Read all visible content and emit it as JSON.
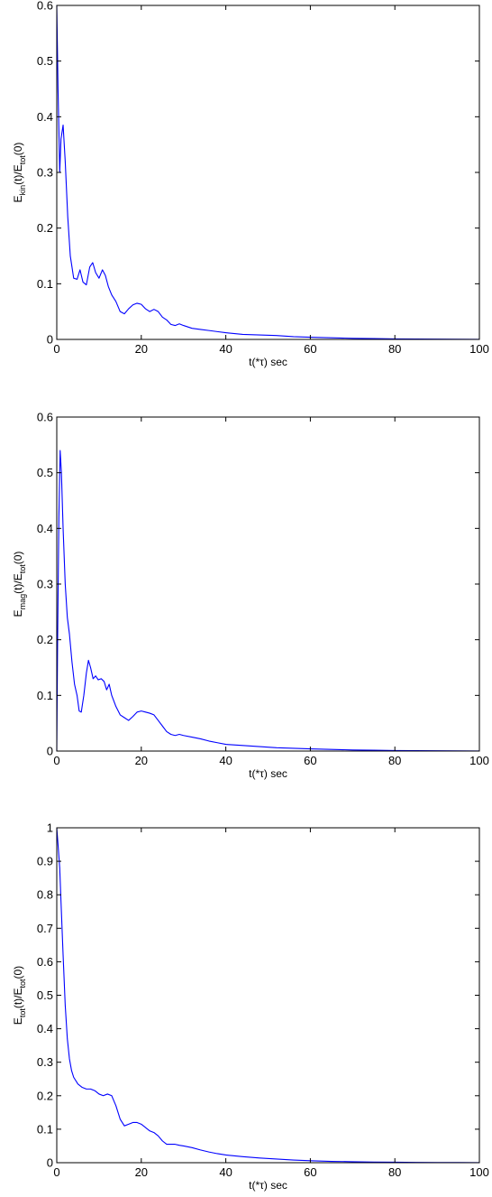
{
  "charts": [
    {
      "ylabel": {
        "main": "E",
        "sub1": "kin",
        "mid": "(t)/E",
        "sub2": "tot",
        "tail": "(0)"
      },
      "xlabel": "t(*τ) sec",
      "xticks": [
        "0",
        "20",
        "40",
        "60",
        "80",
        "100"
      ],
      "yticks": [
        "0",
        "0.1",
        "0.2",
        "0.3",
        "0.4",
        "0.5",
        "0.6"
      ]
    },
    {
      "ylabel": {
        "main": "E",
        "sub1": "mag",
        "mid": "(t)/E",
        "sub2": "tot",
        "tail": "(0)"
      },
      "xlabel": "t(*τ) sec",
      "xticks": [
        "0",
        "20",
        "40",
        "60",
        "80",
        "100"
      ],
      "yticks": [
        "0",
        "0.1",
        "0.2",
        "0.3",
        "0.4",
        "0.5",
        "0.6"
      ]
    },
    {
      "ylabel": {
        "main": "E",
        "sub1": "tot",
        "mid": "(t)/E",
        "sub2": "tot",
        "tail": "(0)"
      },
      "xlabel": "t(*τ) sec",
      "xticks": [
        "0",
        "20",
        "40",
        "60",
        "80",
        "100"
      ],
      "yticks": [
        "0",
        "0.1",
        "0.2",
        "0.3",
        "0.4",
        "0.5",
        "0.6",
        "0.7",
        "0.8",
        "0.9",
        "1"
      ]
    }
  ],
  "chart_data": [
    {
      "type": "line",
      "xlabel": "t(*τ) sec",
      "ylabel": "E_kin(t)/E_tot(0)",
      "xlim": [
        0,
        100
      ],
      "ylim": [
        0,
        0.6
      ],
      "grid": false,
      "color": "#0000ff",
      "series": [
        {
          "x": [
            0,
            0.3,
            0.7,
            1.0,
            1.5,
            2.0,
            2.6,
            3.2,
            4.0,
            4.8,
            5.5,
            6.2,
            7.0,
            7.8,
            8.5,
            9.2,
            10.0,
            10.8,
            11.5,
            12.2,
            13.0,
            14.0,
            15.0,
            16.0,
            17.0,
            18.0,
            19.0,
            20.0,
            21.0,
            22.0,
            23.0,
            24.0,
            25.0,
            26.0,
            27.0,
            28.0,
            29.0,
            30.0,
            32.0,
            34.0,
            36.0,
            38.0,
            40.0,
            44.0,
            48.0,
            52.0,
            56.0,
            60.0,
            65.0,
            70.0,
            75.0,
            80.0,
            85.0,
            90.0,
            95.0,
            100.0
          ],
          "y": [
            0.6,
            0.45,
            0.3,
            0.36,
            0.385,
            0.32,
            0.22,
            0.15,
            0.11,
            0.108,
            0.125,
            0.103,
            0.098,
            0.13,
            0.138,
            0.12,
            0.11,
            0.125,
            0.115,
            0.095,
            0.08,
            0.068,
            0.05,
            0.046,
            0.055,
            0.062,
            0.065,
            0.063,
            0.055,
            0.05,
            0.054,
            0.05,
            0.04,
            0.035,
            0.027,
            0.025,
            0.028,
            0.025,
            0.02,
            0.018,
            0.016,
            0.014,
            0.012,
            0.009,
            0.008,
            0.007,
            0.005,
            0.004,
            0.003,
            0.002,
            0.0015,
            0.001,
            0.0008,
            0.0005,
            0.0003,
            0.0002
          ]
        }
      ]
    },
    {
      "type": "line",
      "xlabel": "t(*τ) sec",
      "ylabel": "E_mag(t)/E_tot(0)",
      "xlim": [
        0,
        100
      ],
      "ylim": [
        0,
        0.6
      ],
      "grid": false,
      "color": "#0000ff",
      "series": [
        {
          "x": [
            0,
            0.2,
            0.5,
            0.8,
            1.1,
            1.5,
            2.0,
            2.5,
            3.0,
            3.6,
            4.2,
            4.8,
            5.3,
            5.8,
            6.4,
            7.0,
            7.5,
            8.0,
            8.6,
            9.2,
            9.8,
            10.5,
            11.2,
            11.8,
            12.4,
            13.0,
            14.0,
            15.0,
            16.0,
            17.0,
            18.0,
            19.0,
            20.0,
            21.0,
            22.0,
            23.0,
            24.0,
            25.0,
            26.0,
            27.0,
            28.0,
            29.0,
            30.0,
            32.0,
            34.0,
            36.0,
            38.0,
            40.0,
            44.0,
            48.0,
            52.0,
            56.0,
            60.0,
            65.0,
            70.0,
            75.0,
            80.0,
            85.0,
            90.0,
            95.0,
            100.0
          ],
          "y": [
            0.0,
            0.2,
            0.42,
            0.54,
            0.5,
            0.4,
            0.3,
            0.24,
            0.21,
            0.16,
            0.12,
            0.1,
            0.072,
            0.07,
            0.1,
            0.14,
            0.163,
            0.15,
            0.13,
            0.135,
            0.128,
            0.13,
            0.125,
            0.11,
            0.12,
            0.1,
            0.08,
            0.065,
            0.06,
            0.055,
            0.062,
            0.07,
            0.072,
            0.07,
            0.068,
            0.065,
            0.055,
            0.045,
            0.035,
            0.03,
            0.028,
            0.03,
            0.028,
            0.025,
            0.022,
            0.018,
            0.015,
            0.012,
            0.01,
            0.008,
            0.006,
            0.005,
            0.004,
            0.003,
            0.002,
            0.0015,
            0.001,
            0.0008,
            0.0005,
            0.0003,
            0.0002
          ]
        }
      ]
    },
    {
      "type": "line",
      "xlabel": "t(*τ) sec",
      "ylabel": "E_tot(t)/E_tot(0)",
      "xlim": [
        0,
        100
      ],
      "ylim": [
        0,
        1
      ],
      "grid": false,
      "color": "#0000ff",
      "series": [
        {
          "x": [
            0,
            0.3,
            0.7,
            1.0,
            1.5,
            2.0,
            2.5,
            3.0,
            3.5,
            4.0,
            5.0,
            6.0,
            7.0,
            8.0,
            9.0,
            10.0,
            11.0,
            12.0,
            13.0,
            14.0,
            15.0,
            16.0,
            17.0,
            18.0,
            19.0,
            20.0,
            21.0,
            22.0,
            23.0,
            24.0,
            25.0,
            26.0,
            27.0,
            28.0,
            29.0,
            30.0,
            32.0,
            34.0,
            36.0,
            38.0,
            40.0,
            44.0,
            48.0,
            52.0,
            56.0,
            60.0,
            65.0,
            70.0,
            75.0,
            80.0,
            85.0,
            90.0,
            95.0,
            100.0
          ],
          "y": [
            1.0,
            0.95,
            0.88,
            0.78,
            0.62,
            0.47,
            0.37,
            0.31,
            0.275,
            0.255,
            0.235,
            0.225,
            0.22,
            0.22,
            0.215,
            0.205,
            0.2,
            0.205,
            0.2,
            0.17,
            0.13,
            0.11,
            0.115,
            0.12,
            0.12,
            0.115,
            0.105,
            0.095,
            0.09,
            0.08,
            0.065,
            0.055,
            0.055,
            0.055,
            0.052,
            0.05,
            0.045,
            0.038,
            0.032,
            0.027,
            0.023,
            0.018,
            0.014,
            0.011,
            0.008,
            0.006,
            0.004,
            0.003,
            0.002,
            0.0015,
            0.001,
            0.0007,
            0.0004,
            0.0002
          ]
        }
      ]
    }
  ]
}
